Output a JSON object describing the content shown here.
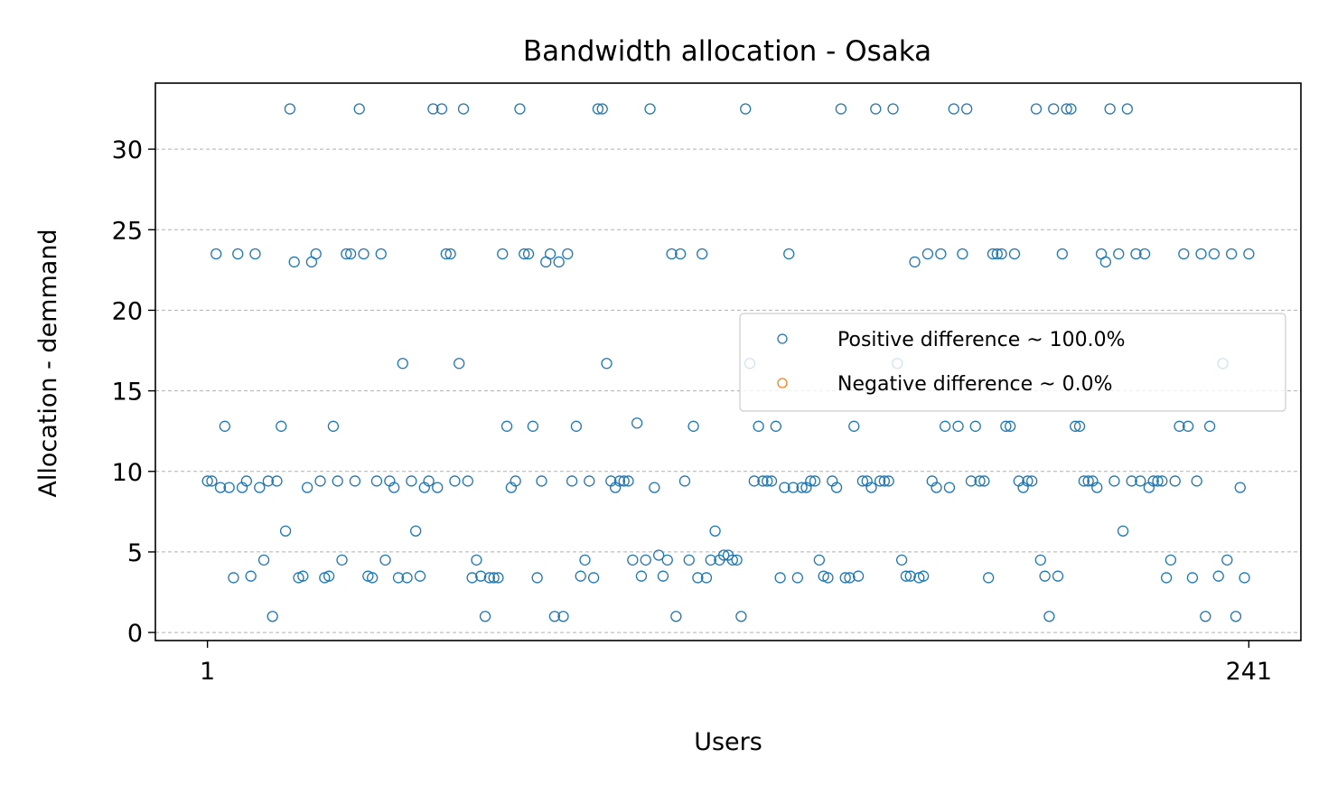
{
  "chart_data": {
    "type": "scatter",
    "title": "Bandwidth allocation - Osaka",
    "xlabel": "Users",
    "ylabel": "Allocation - demmand",
    "x_ticks": [
      1,
      241
    ],
    "y_ticks": [
      0,
      5,
      10,
      15,
      20,
      25,
      30
    ],
    "xlim": [
      -11,
      253
    ],
    "ylim": [
      -0.5,
      34.1
    ],
    "grid": "y-dashed",
    "legend_position": "center-right",
    "series": [
      {
        "name": "Positive difference ~ 100.0%",
        "color": "#1f77b4",
        "x": [
          1,
          2,
          3,
          4,
          5,
          6,
          7,
          8,
          9,
          10,
          11,
          12,
          13,
          14,
          15,
          16,
          17,
          18,
          19,
          20,
          21,
          22,
          23,
          24,
          25,
          26,
          27,
          28,
          29,
          30,
          31,
          32,
          33,
          34,
          35,
          36,
          37,
          38,
          39,
          40,
          41,
          42,
          43,
          44,
          45,
          46,
          47,
          48,
          49,
          50,
          51,
          52,
          53,
          54,
          55,
          56,
          57,
          58,
          59,
          60,
          61,
          62,
          63,
          64,
          65,
          66,
          67,
          68,
          69,
          70,
          71,
          72,
          73,
          74,
          75,
          76,
          77,
          78,
          79,
          80,
          81,
          82,
          83,
          84,
          85,
          86,
          87,
          88,
          89,
          90,
          91,
          92,
          93,
          94,
          95,
          96,
          97,
          98,
          99,
          100,
          101,
          102,
          103,
          104,
          105,
          106,
          107,
          108,
          109,
          110,
          111,
          112,
          113,
          114,
          115,
          116,
          117,
          118,
          119,
          120,
          121,
          122,
          123,
          124,
          125,
          126,
          127,
          128,
          129,
          130,
          131,
          132,
          133,
          134,
          135,
          136,
          137,
          138,
          139,
          140,
          141,
          142,
          143,
          144,
          145,
          146,
          147,
          148,
          149,
          150,
          151,
          152,
          153,
          154,
          155,
          156,
          157,
          158,
          159,
          160,
          161,
          162,
          163,
          164,
          165,
          166,
          167,
          168,
          169,
          170,
          171,
          172,
          173,
          174,
          175,
          176,
          177,
          178,
          179,
          180,
          181,
          182,
          183,
          184,
          185,
          186,
          187,
          188,
          189,
          190,
          191,
          192,
          193,
          194,
          195,
          196,
          197,
          198,
          199,
          200,
          201,
          202,
          203,
          204,
          205,
          206,
          207,
          208,
          209,
          210,
          211,
          212,
          213,
          214,
          215,
          216,
          217,
          218,
          219,
          220,
          221,
          222,
          223,
          224,
          225,
          226,
          227,
          228,
          229,
          230,
          231,
          232,
          233,
          234,
          235,
          236,
          237,
          238,
          239,
          240,
          241
        ],
        "y": [
          9.4,
          9.4,
          23.5,
          9.0,
          12.8,
          9.0,
          3.4,
          23.5,
          9.0,
          9.4,
          3.5,
          23.5,
          9.0,
          4.5,
          9.4,
          1.0,
          9.4,
          12.8,
          6.3,
          32.5,
          23.0,
          3.4,
          3.5,
          9.0,
          23.0,
          23.5,
          9.4,
          3.4,
          3.5,
          12.8,
          9.4,
          4.5,
          23.5,
          23.5,
          9.4,
          32.5,
          23.5,
          3.5,
          3.4,
          9.4,
          23.5,
          4.5,
          9.4,
          9.0,
          3.4,
          16.7,
          3.4,
          9.4,
          6.3,
          3.5,
          9.0,
          9.4,
          32.5,
          9.0,
          32.5,
          23.5,
          23.5,
          9.4,
          16.7,
          32.5,
          9.4,
          3.4,
          4.5,
          3.5,
          1.0,
          3.4,
          3.4,
          3.4,
          23.5,
          12.8,
          9.0,
          9.4,
          32.5,
          23.5,
          23.5,
          12.8,
          3.4,
          9.4,
          23.0,
          23.5,
          1.0,
          23.0,
          1.0,
          23.5,
          9.4,
          12.8,
          3.5,
          4.5,
          9.4,
          3.4,
          32.5,
          32.5,
          16.7,
          9.4,
          9.0,
          9.4,
          9.4,
          9.4,
          4.5,
          13.0,
          3.5,
          4.5,
          32.5,
          9.0,
          4.8,
          3.5,
          4.5,
          23.5,
          1.0,
          23.5,
          9.4,
          4.5,
          12.8,
          3.4,
          23.5,
          3.4,
          4.5,
          6.3,
          4.5,
          4.8,
          4.8,
          4.5,
          4.5,
          1.0,
          32.5,
          16.7,
          9.4,
          12.8,
          9.4,
          9.4,
          9.4,
          12.8,
          3.4,
          9.0,
          23.5,
          9.0,
          3.4,
          9.0,
          9.0,
          9.4,
          9.4,
          4.5,
          3.5,
          3.4,
          9.4,
          9.0,
          32.5,
          3.4,
          3.4,
          12.8,
          3.5,
          9.4,
          9.4,
          9.0,
          32.5,
          9.4,
          9.4,
          9.4,
          32.5,
          16.7,
          4.5,
          3.5,
          3.5,
          23.0,
          3.4,
          3.5,
          23.5,
          9.4,
          9.0,
          23.5,
          12.8,
          9.0,
          32.5,
          12.8,
          23.5,
          32.5,
          9.4,
          12.8,
          9.4,
          9.4,
          3.4,
          23.5,
          23.5,
          23.5,
          12.8,
          12.8,
          23.5,
          9.4,
          9.0,
          9.4,
          9.4,
          32.5,
          4.5,
          3.5,
          1.0,
          32.5,
          3.5,
          23.5,
          32.5,
          32.5,
          12.8,
          12.8,
          9.4,
          9.4,
          9.4,
          9.0,
          23.5,
          23.0,
          32.5,
          9.4,
          23.5,
          6.3,
          32.5,
          9.4,
          23.5,
          9.4,
          23.5,
          9.0,
          9.4,
          9.4,
          9.4,
          3.4,
          4.5,
          9.4,
          12.8,
          23.5,
          12.8,
          3.4,
          9.4,
          23.5,
          1.0,
          12.8,
          23.5,
          3.5,
          16.7,
          4.5,
          23.5,
          1.0,
          9.0,
          3.4,
          23.5
        ]
      },
      {
        "name": "Negative difference ~ 0.0%",
        "color": "#ff7f0e",
        "x": [],
        "y": []
      }
    ]
  }
}
